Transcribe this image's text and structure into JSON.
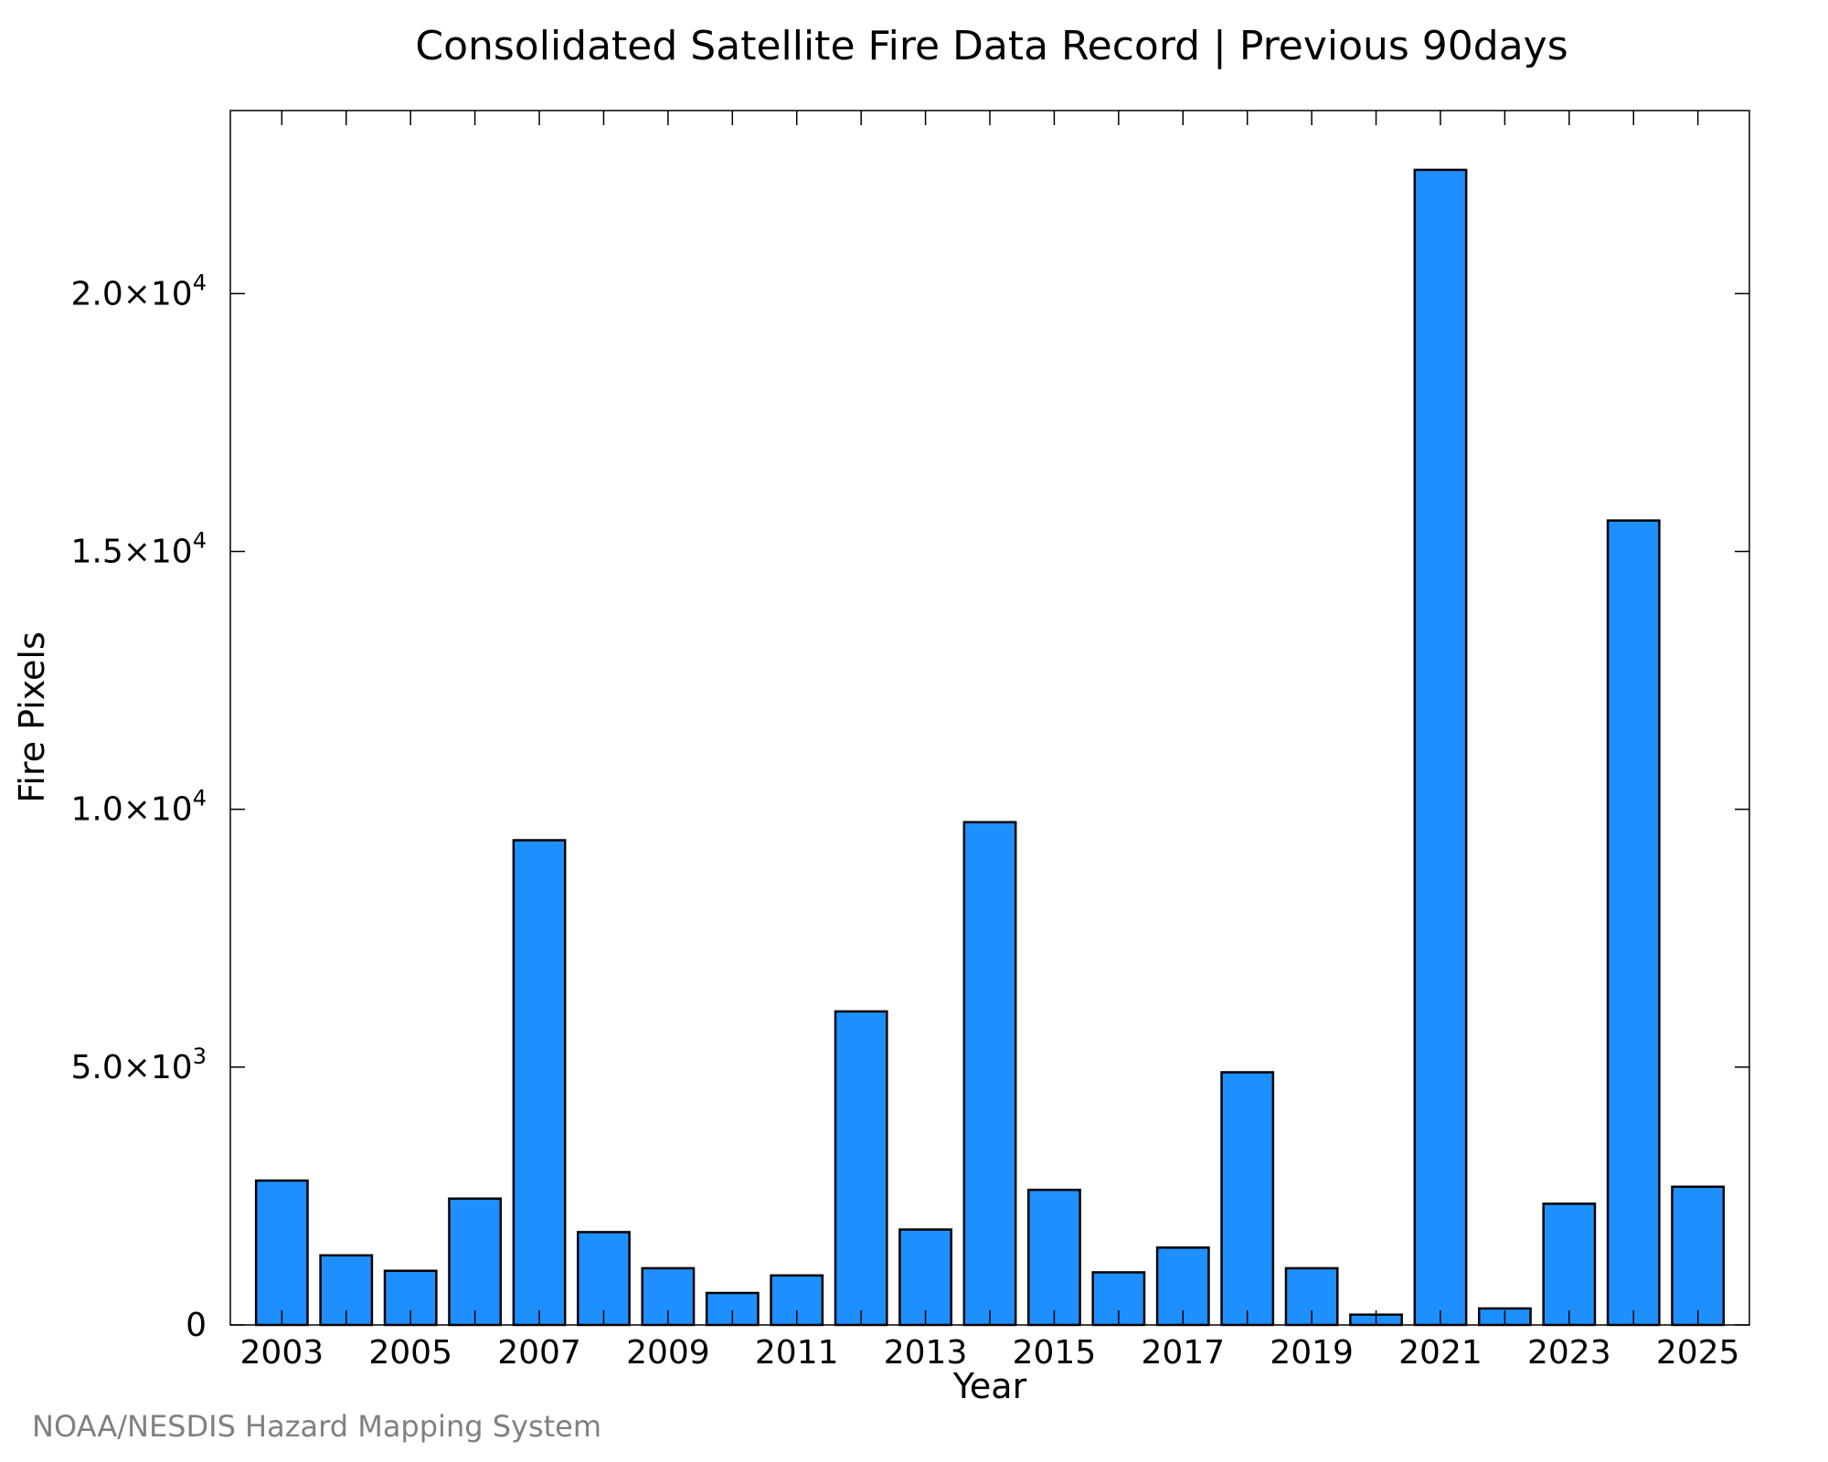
{
  "chart_data": {
    "type": "bar",
    "title": "Consolidated Satellite Fire Data Record | Previous 90days",
    "xlabel": "Year",
    "ylabel": "Fire Pixels",
    "credit": "NOAA/NESDIS Hazard Mapping System",
    "categories": [
      "2003",
      "2004",
      "2005",
      "2006",
      "2007",
      "2008",
      "2009",
      "2010",
      "2011",
      "2012",
      "2013",
      "2014",
      "2015",
      "2016",
      "2017",
      "2018",
      "2019",
      "2020",
      "2021",
      "2022",
      "2023",
      "2024",
      "2025"
    ],
    "x_tick_labels": [
      "2003",
      "2005",
      "2007",
      "2009",
      "2011",
      "2013",
      "2015",
      "2017",
      "2019",
      "2021",
      "2023",
      "2025"
    ],
    "values": [
      2800,
      1350,
      1050,
      2450,
      9400,
      1800,
      1100,
      620,
      960,
      6080,
      1850,
      9750,
      2620,
      1020,
      1500,
      4900,
      1100,
      200,
      22400,
      320,
      2350,
      15600,
      2680
    ],
    "y_ticks": [
      {
        "value": 0,
        "mantissa": "0",
        "exponent": ""
      },
      {
        "value": 5000,
        "mantissa": "5.0×10",
        "exponent": "3"
      },
      {
        "value": 10000,
        "mantissa": "1.0×10",
        "exponent": "4"
      },
      {
        "value": 15000,
        "mantissa": "1.5×10",
        "exponent": "4"
      },
      {
        "value": 20000,
        "mantissa": "2.0×10",
        "exponent": "4"
      }
    ],
    "ylim": [
      0,
      23550
    ],
    "xlim": [
      2002.2,
      2025.8
    ],
    "grid": false,
    "colors": {
      "bar_fill": "#1E8FFF",
      "bar_stroke": "#000000",
      "frame": "#000000",
      "credit": "#808080"
    }
  }
}
